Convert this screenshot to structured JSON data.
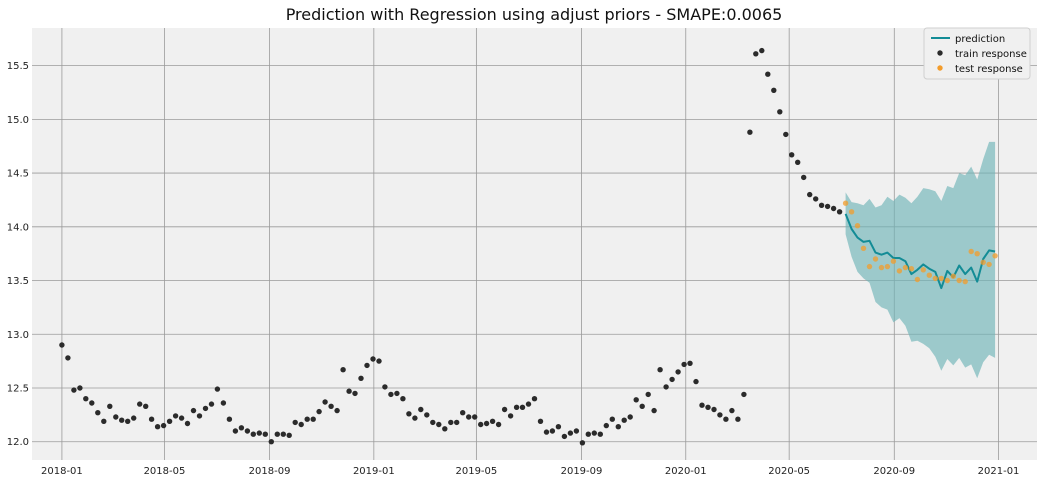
{
  "chart_data": {
    "type": "scatter",
    "title": "Prediction with Regression using adjust priors - SMAPE:0.0065",
    "xlabel": "",
    "ylabel": "",
    "grid": true,
    "legend_position": "top-right",
    "x_axis": {
      "type": "date",
      "range": [
        "2017-11-27",
        "2021-02-15"
      ],
      "ticks": [
        "2018-01",
        "2018-05",
        "2018-09",
        "2019-01",
        "2019-05",
        "2019-09",
        "2020-01",
        "2020-05",
        "2020-09",
        "2021-01"
      ]
    },
    "y_axis": {
      "range": [
        11.83,
        15.85
      ],
      "ticks": [
        "12.0",
        "12.5",
        "13.0",
        "13.5",
        "14.0",
        "14.5",
        "15.0",
        "15.5"
      ]
    },
    "colors": {
      "background": "#f0f0f0",
      "grid": "#9a9a9a",
      "prediction": "#138c96",
      "band": "#6fb3b7",
      "train": "#2b2b2b",
      "test": "#f39c2b"
    },
    "series": [
      {
        "name": "train response",
        "kind": "scatter",
        "points": [
          [
            "2018-01-01",
            12.9
          ],
          [
            "2018-01-08",
            12.78
          ],
          [
            "2018-01-15",
            12.48
          ],
          [
            "2018-01-22",
            12.5
          ],
          [
            "2018-01-29",
            12.4
          ],
          [
            "2018-02-05",
            12.36
          ],
          [
            "2018-02-12",
            12.27
          ],
          [
            "2018-02-19",
            12.19
          ],
          [
            "2018-02-26",
            12.33
          ],
          [
            "2018-03-05",
            12.23
          ],
          [
            "2018-03-12",
            12.2
          ],
          [
            "2018-03-19",
            12.19
          ],
          [
            "2018-03-26",
            12.22
          ],
          [
            "2018-04-02",
            12.35
          ],
          [
            "2018-04-09",
            12.33
          ],
          [
            "2018-04-16",
            12.21
          ],
          [
            "2018-04-23",
            12.14
          ],
          [
            "2018-04-30",
            12.15
          ],
          [
            "2018-05-07",
            12.19
          ],
          [
            "2018-05-14",
            12.24
          ],
          [
            "2018-05-21",
            12.22
          ],
          [
            "2018-05-28",
            12.17
          ],
          [
            "2018-06-04",
            12.29
          ],
          [
            "2018-06-11",
            12.24
          ],
          [
            "2018-06-18",
            12.31
          ],
          [
            "2018-06-25",
            12.35
          ],
          [
            "2018-07-02",
            12.49
          ],
          [
            "2018-07-09",
            12.36
          ],
          [
            "2018-07-16",
            12.21
          ],
          [
            "2018-07-23",
            12.1
          ],
          [
            "2018-07-30",
            12.13
          ],
          [
            "2018-08-06",
            12.1
          ],
          [
            "2018-08-13",
            12.07
          ],
          [
            "2018-08-20",
            12.08
          ],
          [
            "2018-08-27",
            12.07
          ],
          [
            "2018-09-03",
            12.0
          ],
          [
            "2018-09-10",
            12.07
          ],
          [
            "2018-09-17",
            12.07
          ],
          [
            "2018-09-24",
            12.06
          ],
          [
            "2018-10-01",
            12.18
          ],
          [
            "2018-10-08",
            12.16
          ],
          [
            "2018-10-15",
            12.21
          ],
          [
            "2018-10-22",
            12.21
          ],
          [
            "2018-10-29",
            12.28
          ],
          [
            "2018-11-05",
            12.37
          ],
          [
            "2018-11-12",
            12.33
          ],
          [
            "2018-11-19",
            12.29
          ],
          [
            "2018-11-26",
            12.67
          ],
          [
            "2018-12-03",
            12.47
          ],
          [
            "2018-12-10",
            12.45
          ],
          [
            "2018-12-17",
            12.59
          ],
          [
            "2018-12-24",
            12.71
          ],
          [
            "2018-12-31",
            12.77
          ],
          [
            "2019-01-07",
            12.75
          ],
          [
            "2019-01-14",
            12.51
          ],
          [
            "2019-01-21",
            12.44
          ],
          [
            "2019-01-28",
            12.45
          ],
          [
            "2019-02-04",
            12.4
          ],
          [
            "2019-02-11",
            12.26
          ],
          [
            "2019-02-18",
            12.22
          ],
          [
            "2019-02-25",
            12.3
          ],
          [
            "2019-03-04",
            12.25
          ],
          [
            "2019-03-11",
            12.18
          ],
          [
            "2019-03-18",
            12.16
          ],
          [
            "2019-03-25",
            12.12
          ],
          [
            "2019-04-01",
            12.18
          ],
          [
            "2019-04-08",
            12.18
          ],
          [
            "2019-04-15",
            12.27
          ],
          [
            "2019-04-22",
            12.23
          ],
          [
            "2019-04-29",
            12.23
          ],
          [
            "2019-05-06",
            12.16
          ],
          [
            "2019-05-13",
            12.17
          ],
          [
            "2019-05-20",
            12.19
          ],
          [
            "2019-05-27",
            12.16
          ],
          [
            "2019-06-03",
            12.3
          ],
          [
            "2019-06-10",
            12.24
          ],
          [
            "2019-06-17",
            12.32
          ],
          [
            "2019-06-24",
            12.32
          ],
          [
            "2019-07-01",
            12.35
          ],
          [
            "2019-07-08",
            12.4
          ],
          [
            "2019-07-15",
            12.19
          ],
          [
            "2019-07-22",
            12.09
          ],
          [
            "2019-07-29",
            12.1
          ],
          [
            "2019-08-05",
            12.14
          ],
          [
            "2019-08-12",
            12.05
          ],
          [
            "2019-08-19",
            12.08
          ],
          [
            "2019-08-26",
            12.1
          ],
          [
            "2019-09-02",
            11.99
          ],
          [
            "2019-09-09",
            12.07
          ],
          [
            "2019-09-16",
            12.08
          ],
          [
            "2019-09-23",
            12.07
          ],
          [
            "2019-09-30",
            12.15
          ],
          [
            "2019-10-07",
            12.21
          ],
          [
            "2019-10-14",
            12.14
          ],
          [
            "2019-10-21",
            12.2
          ],
          [
            "2019-10-28",
            12.23
          ],
          [
            "2019-11-04",
            12.39
          ],
          [
            "2019-11-11",
            12.33
          ],
          [
            "2019-11-18",
            12.44
          ],
          [
            "2019-11-25",
            12.29
          ],
          [
            "2019-12-02",
            12.67
          ],
          [
            "2019-12-09",
            12.51
          ],
          [
            "2019-12-16",
            12.58
          ],
          [
            "2019-12-23",
            12.65
          ],
          [
            "2019-12-30",
            12.72
          ],
          [
            "2020-01-06",
            12.73
          ],
          [
            "2020-01-13",
            12.56
          ],
          [
            "2020-01-20",
            12.34
          ],
          [
            "2020-01-27",
            12.32
          ],
          [
            "2020-02-03",
            12.3
          ],
          [
            "2020-02-10",
            12.25
          ],
          [
            "2020-02-17",
            12.21
          ],
          [
            "2020-02-24",
            12.29
          ],
          [
            "2020-03-02",
            12.21
          ],
          [
            "2020-03-09",
            12.44
          ],
          [
            "2020-03-16",
            14.88
          ],
          [
            "2020-03-23",
            15.61
          ],
          [
            "2020-03-30",
            15.64
          ],
          [
            "2020-04-06",
            15.42
          ],
          [
            "2020-04-13",
            15.27
          ],
          [
            "2020-04-20",
            15.07
          ],
          [
            "2020-04-27",
            14.86
          ],
          [
            "2020-05-04",
            14.67
          ],
          [
            "2020-05-11",
            14.6
          ],
          [
            "2020-05-18",
            14.46
          ],
          [
            "2020-05-25",
            14.3
          ],
          [
            "2020-06-01",
            14.26
          ],
          [
            "2020-06-08",
            14.2
          ],
          [
            "2020-06-15",
            14.19
          ],
          [
            "2020-06-22",
            14.17
          ],
          [
            "2020-06-29",
            14.14
          ]
        ]
      },
      {
        "name": "test response",
        "kind": "scatter",
        "points": [
          [
            "2020-07-06",
            14.22
          ],
          [
            "2020-07-13",
            14.14
          ],
          [
            "2020-07-20",
            14.01
          ],
          [
            "2020-07-27",
            13.8
          ],
          [
            "2020-08-03",
            13.63
          ],
          [
            "2020-08-10",
            13.7
          ],
          [
            "2020-08-17",
            13.62
          ],
          [
            "2020-08-24",
            13.63
          ],
          [
            "2020-08-31",
            13.68
          ],
          [
            "2020-09-07",
            13.59
          ],
          [
            "2020-09-14",
            13.62
          ],
          [
            "2020-09-21",
            13.61
          ],
          [
            "2020-09-28",
            13.51
          ],
          [
            "2020-10-05",
            13.6
          ],
          [
            "2020-10-12",
            13.55
          ],
          [
            "2020-10-19",
            13.52
          ],
          [
            "2020-10-26",
            13.52
          ],
          [
            "2020-11-02",
            13.5
          ],
          [
            "2020-11-09",
            13.54
          ],
          [
            "2020-11-16",
            13.5
          ],
          [
            "2020-11-23",
            13.49
          ],
          [
            "2020-11-30",
            13.77
          ],
          [
            "2020-12-07",
            13.75
          ],
          [
            "2020-12-14",
            13.67
          ],
          [
            "2020-12-21",
            13.65
          ],
          [
            "2020-12-28",
            13.73
          ]
        ]
      },
      {
        "name": "prediction",
        "kind": "line",
        "points": [
          [
            "2020-07-06",
            14.12
          ],
          [
            "2020-07-13",
            13.98
          ],
          [
            "2020-07-20",
            13.9
          ],
          [
            "2020-07-27",
            13.86
          ],
          [
            "2020-08-03",
            13.87
          ],
          [
            "2020-08-10",
            13.76
          ],
          [
            "2020-08-17",
            13.74
          ],
          [
            "2020-08-24",
            13.76
          ],
          [
            "2020-08-31",
            13.71
          ],
          [
            "2020-09-07",
            13.71
          ],
          [
            "2020-09-14",
            13.68
          ],
          [
            "2020-09-21",
            13.56
          ],
          [
            "2020-09-28",
            13.6
          ],
          [
            "2020-10-05",
            13.65
          ],
          [
            "2020-10-12",
            13.61
          ],
          [
            "2020-10-19",
            13.58
          ],
          [
            "2020-10-26",
            13.43
          ],
          [
            "2020-11-02",
            13.59
          ],
          [
            "2020-11-09",
            13.53
          ],
          [
            "2020-11-16",
            13.64
          ],
          [
            "2020-11-23",
            13.56
          ],
          [
            "2020-11-30",
            13.62
          ],
          [
            "2020-12-07",
            13.49
          ],
          [
            "2020-12-14",
            13.7
          ],
          [
            "2020-12-21",
            13.78
          ],
          [
            "2020-12-28",
            13.77
          ]
        ]
      },
      {
        "name": "prediction_interval",
        "kind": "band",
        "points": [
          [
            "2020-07-06",
            13.93,
            14.32
          ],
          [
            "2020-07-13",
            13.72,
            14.23
          ],
          [
            "2020-07-20",
            13.58,
            14.22
          ],
          [
            "2020-07-27",
            13.52,
            14.2
          ],
          [
            "2020-08-03",
            13.48,
            14.26
          ],
          [
            "2020-08-10",
            13.3,
            14.18
          ],
          [
            "2020-08-17",
            13.25,
            14.2
          ],
          [
            "2020-08-24",
            13.23,
            14.28
          ],
          [
            "2020-08-31",
            13.11,
            14.24
          ],
          [
            "2020-09-07",
            13.15,
            14.3
          ],
          [
            "2020-09-14",
            13.08,
            14.27
          ],
          [
            "2020-09-21",
            12.93,
            14.22
          ],
          [
            "2020-09-28",
            12.94,
            14.28
          ],
          [
            "2020-10-05",
            12.91,
            14.36
          ],
          [
            "2020-10-12",
            12.87,
            14.35
          ],
          [
            "2020-10-19",
            12.79,
            14.33
          ],
          [
            "2020-10-26",
            12.66,
            14.24
          ],
          [
            "2020-11-02",
            12.77,
            14.38
          ],
          [
            "2020-11-09",
            12.71,
            14.36
          ],
          [
            "2020-11-16",
            12.78,
            14.5
          ],
          [
            "2020-11-23",
            12.69,
            14.48
          ],
          [
            "2020-11-30",
            12.72,
            14.56
          ],
          [
            "2020-12-07",
            12.59,
            14.44
          ],
          [
            "2020-12-14",
            12.74,
            14.63
          ],
          [
            "2020-12-21",
            12.81,
            14.79
          ],
          [
            "2020-12-28",
            12.78,
            14.79
          ]
        ]
      }
    ]
  }
}
